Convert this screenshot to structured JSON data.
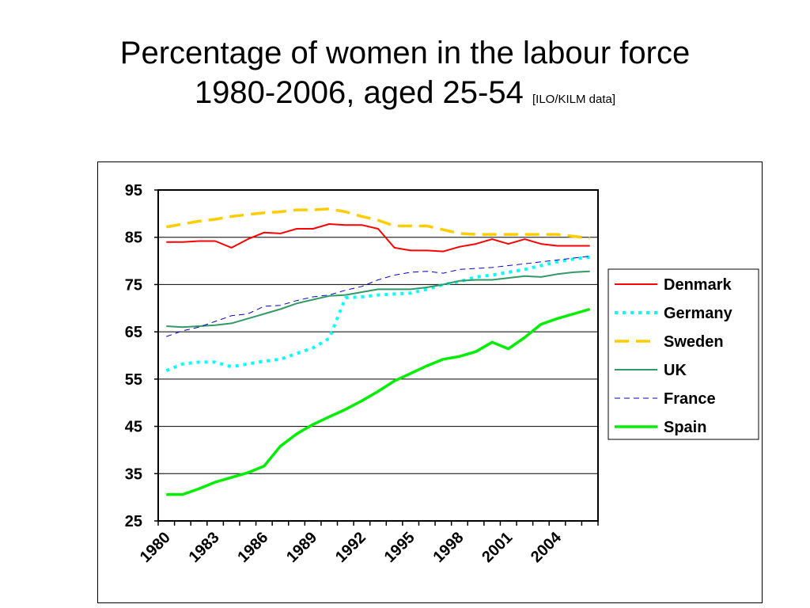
{
  "title": {
    "line1": "Percentage of women in the labour force",
    "line2": "1980-2006, aged 25-54",
    "source": "[ILO/KILM data]"
  },
  "chart_data": {
    "type": "line",
    "title": "",
    "xlabel": "",
    "ylabel": "",
    "ylim": [
      25,
      95
    ],
    "yticks": [
      25,
      35,
      45,
      55,
      65,
      75,
      85,
      95
    ],
    "xlim": [
      1980,
      2006
    ],
    "x": [
      1980,
      1981,
      1982,
      1983,
      1984,
      1985,
      1986,
      1987,
      1988,
      1989,
      1990,
      1991,
      1992,
      1993,
      1994,
      1995,
      1996,
      1997,
      1998,
      1999,
      2000,
      2001,
      2002,
      2003,
      2004,
      2005,
      2006
    ],
    "xtick_labels": [
      "1980",
      "1983",
      "1986",
      "1989",
      "1992",
      "1995",
      "1998",
      "2001",
      "2004"
    ],
    "grid": "horizontal",
    "legend_position": "right",
    "series": [
      {
        "name": "Denmark",
        "color": "#ff0000",
        "style": "solid",
        "values": [
          84.0,
          84.0,
          84.2,
          84.2,
          82.8,
          84.6,
          86.0,
          85.8,
          86.8,
          86.8,
          87.8,
          87.6,
          87.6,
          86.8,
          82.8,
          82.2,
          82.2,
          82.0,
          83.0,
          83.6,
          84.6,
          83.6,
          84.6,
          83.6,
          83.2,
          83.2,
          83.2
        ]
      },
      {
        "name": "Germany",
        "color": "#00ffff",
        "style": "dotted",
        "values": [
          56.8,
          58.2,
          58.6,
          58.6,
          57.6,
          58.2,
          58.8,
          59.2,
          60.4,
          61.6,
          63.6,
          72.2,
          72.4,
          72.8,
          73.0,
          73.2,
          74.0,
          75.0,
          75.6,
          76.6,
          77.0,
          77.6,
          78.2,
          79.0,
          79.8,
          80.4,
          80.8
        ]
      },
      {
        "name": "Sweden",
        "color": "#ffcc00",
        "style": "dashed",
        "values": [
          87.2,
          87.8,
          88.4,
          88.8,
          89.4,
          89.8,
          90.2,
          90.4,
          90.8,
          90.8,
          91.0,
          90.4,
          89.4,
          88.6,
          87.4,
          87.4,
          87.4,
          86.6,
          85.8,
          85.6,
          85.6,
          85.6,
          85.6,
          85.6,
          85.6,
          85.2,
          84.8
        ]
      },
      {
        "name": "UK",
        "color": "#339966",
        "style": "solid",
        "values": [
          66.2,
          66.0,
          66.2,
          66.4,
          66.8,
          67.8,
          68.8,
          69.8,
          71.0,
          71.8,
          72.6,
          72.8,
          73.4,
          74.0,
          74.0,
          74.0,
          74.4,
          75.0,
          75.8,
          76.0,
          76.0,
          76.4,
          76.8,
          76.6,
          77.2,
          77.6,
          77.8
        ]
      },
      {
        "name": "France",
        "color": "#0000cc",
        "style": "dashed-thin",
        "values": [
          64.0,
          65.2,
          66.0,
          67.2,
          68.4,
          68.8,
          70.4,
          70.6,
          71.6,
          72.4,
          72.8,
          73.8,
          74.6,
          76.0,
          77.0,
          77.6,
          77.8,
          77.4,
          78.2,
          78.4,
          78.6,
          79.0,
          79.4,
          79.8,
          80.2,
          80.6,
          81.0
        ]
      },
      {
        "name": "Spain",
        "color": "#00ee00",
        "style": "solid-thick",
        "values": [
          30.6,
          30.6,
          31.8,
          33.2,
          34.2,
          35.2,
          36.6,
          40.8,
          43.4,
          45.4,
          47.0,
          48.6,
          50.4,
          52.4,
          54.6,
          56.2,
          57.8,
          59.2,
          59.8,
          60.8,
          62.8,
          61.4,
          63.8,
          66.6,
          67.8,
          68.8,
          69.8
        ]
      }
    ]
  }
}
